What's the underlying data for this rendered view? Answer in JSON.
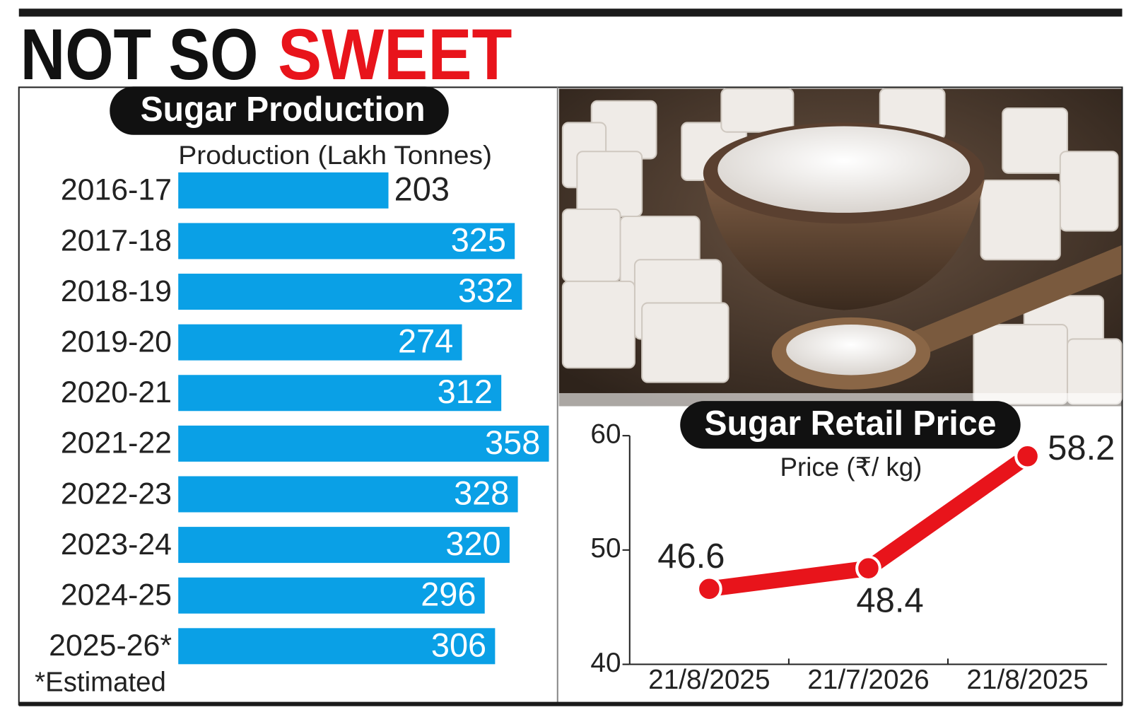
{
  "header": {
    "title_black": "NOT SO",
    "title_red": "SWEET"
  },
  "chart_data": [
    {
      "type": "hbar",
      "title": "Sugar Production",
      "xlabel": "Production (Lakh Tonnes)",
      "categories": [
        "2016-17",
        "2017-18",
        "2018-19",
        "2019-20",
        "2020-21",
        "2021-22",
        "2022-23",
        "2023-24",
        "2024-25",
        "2025-26*"
      ],
      "values": [
        203,
        325,
        332,
        274,
        312,
        358,
        328,
        320,
        296,
        306
      ],
      "color": "#0aa0e6",
      "footnote": "*Estimated"
    },
    {
      "type": "line",
      "title": "Sugar Retail Price",
      "ylabel": "Price (₹/ kg)",
      "categories": [
        "21/8/2025",
        "21/7/2026",
        "21/8/2025"
      ],
      "values": [
        46.6,
        48.4,
        58.2
      ],
      "color": "#e8141b",
      "ylim": [
        40,
        60
      ],
      "yticks": [
        40,
        50,
        60
      ]
    }
  ]
}
